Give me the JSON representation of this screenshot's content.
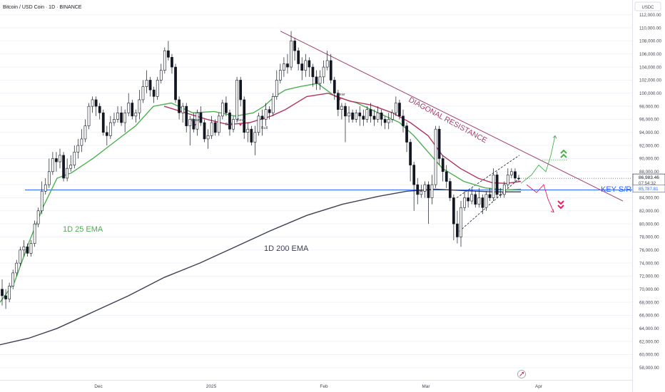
{
  "header": {
    "symbol_title": "Bitcoin / USD Coin · 1D · BINANCE"
  },
  "price_axis": {
    "currency": "USDC",
    "ticks": [
      "112,000.00",
      "110,000.00",
      "108,000.00",
      "106,000.00",
      "104,000.00",
      "102,000.00",
      "100,000.00",
      "98,000.00",
      "96,000.00",
      "94,000.00",
      "92,000.00",
      "90,000.00",
      "88,000.00",
      "86,000.00",
      "84,000.00",
      "82,000.00",
      "80,000.00",
      "78,000.00",
      "76,000.00",
      "74,000.00",
      "72,000.00",
      "70,000.00",
      "68,000.00",
      "66,000.00",
      "64,000.00",
      "62,000.00",
      "60,000.00",
      "58,000.00"
    ],
    "last_price": "86,983.46",
    "countdown": "07:54:32",
    "line_level": "85,787.81"
  },
  "time_axis": {
    "ticks": [
      "Dec",
      "2025",
      "Feb",
      "Mar",
      "Apr"
    ]
  },
  "annotations": {
    "diagonal_resistance": "DIAGONAL RESISTANCE",
    "key_sr": "KEY S/R",
    "ema25_label": "1D 25 EMA",
    "ema200_label": "1D 200 EMA",
    "signals": [
      "Bear",
      "Bull",
      "Bear",
      "Bull",
      "Bear"
    ]
  },
  "colors": {
    "up_candle": "#131722",
    "down_candle": "#131722",
    "ema25": "#4caf50",
    "ema200": "#3d3f52",
    "ema_short": "#b2355e",
    "resistance": "#a1416b",
    "key_sr_line": "#2962ff",
    "bull_arrow": "#4caf50",
    "bear_arrow": "#e91e63"
  },
  "chart_data": {
    "type": "candlestick",
    "price_range": [
      57000,
      113500
    ],
    "key_sr_level": 85200,
    "series": [
      {
        "name": "1D 25 EMA",
        "points": [
          [
            0,
            68000
          ],
          [
            20,
            71000
          ],
          [
            40,
            77000
          ],
          [
            60,
            82500
          ],
          [
            80,
            87000
          ],
          [
            100,
            87800
          ],
          [
            130,
            90000
          ],
          [
            160,
            92500
          ],
          [
            190,
            95000
          ],
          [
            215,
            98000
          ],
          [
            240,
            98500
          ],
          [
            270,
            97000
          ],
          [
            300,
            97200
          ],
          [
            330,
            96500
          ],
          [
            355,
            97000
          ],
          [
            370,
            98000
          ],
          [
            385,
            99500
          ],
          [
            400,
            100500
          ],
          [
            420,
            101000
          ],
          [
            445,
            101500
          ],
          [
            470,
            99500
          ],
          [
            500,
            98500
          ],
          [
            530,
            97000
          ],
          [
            560,
            95500
          ],
          [
            580,
            93500
          ],
          [
            600,
            91000
          ],
          [
            620,
            88500
          ],
          [
            650,
            86500
          ],
          [
            680,
            85500
          ],
          [
            710,
            85200
          ],
          [
            730,
            85300
          ]
        ]
      },
      {
        "name": "1D 200 EMA",
        "points": [
          [
            0,
            61500
          ],
          [
            40,
            62500
          ],
          [
            80,
            64000
          ],
          [
            130,
            66500
          ],
          [
            180,
            69000
          ],
          [
            230,
            71800
          ],
          [
            280,
            74000
          ],
          [
            330,
            76500
          ],
          [
            380,
            79000
          ],
          [
            430,
            81300
          ],
          [
            480,
            83000
          ],
          [
            530,
            84200
          ],
          [
            570,
            85000
          ],
          [
            610,
            85300
          ],
          [
            650,
            85100
          ],
          [
            690,
            84900
          ],
          [
            730,
            84900
          ]
        ]
      },
      {
        "name": "",
        "points": [
          [
            230,
            98000
          ],
          [
            260,
            97000
          ],
          [
            290,
            96000
          ],
          [
            320,
            95200
          ],
          [
            350,
            95500
          ],
          [
            380,
            96500
          ],
          [
            400,
            97500
          ],
          [
            430,
            99500
          ],
          [
            460,
            100000
          ],
          [
            490,
            98800
          ],
          [
            520,
            98200
          ],
          [
            550,
            97000
          ],
          [
            575,
            95500
          ],
          [
            600,
            93500
          ],
          [
            620,
            90500
          ],
          [
            645,
            88500
          ],
          [
            670,
            87000
          ],
          [
            690,
            86300
          ],
          [
            710,
            86200
          ],
          [
            730,
            86500
          ]
        ]
      }
    ],
    "resistance_line": [
      [
        393,
        109500
      ],
      [
        873,
        83500
      ]
    ],
    "channel": {
      "lower": [
        [
          640,
          78500
        ],
        [
          728,
          87000
        ]
      ],
      "upper": [
        [
          640,
          84000
        ],
        [
          728,
          90500
        ]
      ]
    },
    "scenario_up": [
      [
        730,
        86200
      ],
      [
        745,
        87500
      ],
      [
        755,
        89000
      ],
      [
        765,
        88000
      ],
      [
        772,
        90500
      ],
      [
        778,
        93500
      ]
    ],
    "scenario_down": [
      [
        738,
        86000
      ],
      [
        752,
        84800
      ],
      [
        762,
        86000
      ],
      [
        768,
        83800
      ],
      [
        776,
        81800
      ]
    ],
    "candles": [
      [
        70000,
        69000,
        71500,
        67500
      ],
      [
        69000,
        68500,
        70000,
        67000
      ],
      [
        68500,
        70500,
        71000,
        68000
      ],
      [
        70500,
        72500,
        73000,
        70000
      ],
      [
        72500,
        74000,
        74500,
        72000
      ],
      [
        74000,
        76000,
        76500,
        73500
      ],
      [
        76000,
        76500,
        77500,
        75000
      ],
      [
        76500,
        75500,
        77000,
        75000
      ],
      [
        75500,
        77000,
        77500,
        75000
      ],
      [
        77000,
        80000,
        80500,
        76500
      ],
      [
        80000,
        82000,
        82500,
        79500
      ],
      [
        82000,
        85000,
        86500,
        81500
      ],
      [
        85000,
        86000,
        87000,
        84500
      ],
      [
        86000,
        88000,
        90000,
        85500
      ],
      [
        88000,
        90000,
        91000,
        87500
      ],
      [
        90000,
        89500,
        91000,
        88000
      ],
      [
        89500,
        90500,
        91500,
        88500
      ],
      [
        90500,
        87000,
        91000,
        86500
      ],
      [
        87000,
        88500,
        90000,
        86500
      ],
      [
        88500,
        89000,
        90500,
        88000
      ],
      [
        89000,
        91000,
        92000,
        88500
      ],
      [
        91000,
        92000,
        93000,
        90000
      ],
      [
        92000,
        93000,
        94500,
        91000
      ],
      [
        93000,
        95000,
        96000,
        92500
      ],
      [
        95000,
        98000,
        98500,
        94500
      ],
      [
        98000,
        99000,
        99500,
        97000
      ],
      [
        99000,
        98000,
        99500,
        96500
      ],
      [
        98000,
        97000,
        98500,
        96000
      ],
      [
        97000,
        94000,
        97500,
        93500
      ],
      [
        94000,
        93500,
        95000,
        92000
      ],
      [
        93500,
        95500,
        96500,
        93000
      ],
      [
        95500,
        96000,
        97000,
        95000
      ],
      [
        96000,
        97000,
        98000,
        95500
      ],
      [
        97000,
        95500,
        98000,
        95000
      ],
      [
        95500,
        97000,
        97500,
        94000
      ],
      [
        97000,
        98500,
        100000,
        96500
      ],
      [
        98500,
        96500,
        99000,
        96000
      ],
      [
        96500,
        97000,
        97500,
        95500
      ],
      [
        97000,
        99000,
        100500,
        96000
      ],
      [
        99000,
        101000,
        102000,
        98500
      ],
      [
        101000,
        102000,
        103500,
        100000
      ],
      [
        102000,
        100500,
        102500,
        99500
      ],
      [
        100500,
        99500,
        101000,
        98500
      ],
      [
        99500,
        102000,
        102500,
        99000
      ],
      [
        102000,
        103500,
        104500,
        101500
      ],
      [
        103500,
        106500,
        107000,
        103000
      ],
      [
        106500,
        105500,
        108000,
        105000
      ],
      [
        105500,
        104000,
        106000,
        103000
      ],
      [
        104000,
        99000,
        104500,
        98500
      ],
      [
        99000,
        97000,
        99500,
        96000
      ],
      [
        97000,
        98000,
        98500,
        95500
      ],
      [
        98000,
        95000,
        98500,
        94000
      ],
      [
        95000,
        96000,
        96500,
        92000
      ],
      [
        96000,
        94500,
        97000,
        94000
      ],
      [
        94500,
        97000,
        97500,
        93500
      ],
      [
        97000,
        95500,
        98000,
        95000
      ],
      [
        95500,
        93000,
        96000,
        92500
      ],
      [
        93000,
        93500,
        94500,
        91500
      ],
      [
        93500,
        95500,
        96500,
        93000
      ],
      [
        95500,
        94000,
        96000,
        93500
      ],
      [
        94000,
        96500,
        97000,
        93500
      ],
      [
        96500,
        98500,
        99000,
        96000
      ],
      [
        98500,
        97000,
        99500,
        96500
      ],
      [
        97000,
        94500,
        97500,
        93500
      ],
      [
        94500,
        96000,
        96500,
        94000
      ],
      [
        96000,
        102000,
        102500,
        95500
      ],
      [
        102000,
        99000,
        102500,
        98000
      ],
      [
        99000,
        94000,
        99500,
        93000
      ],
      [
        94000,
        94500,
        95500,
        92500
      ],
      [
        94500,
        92500,
        95000,
        92000
      ],
      [
        92500,
        94000,
        95000,
        90500
      ],
      [
        94000,
        96500,
        97000,
        93500
      ],
      [
        96500,
        96000,
        97500,
        93500
      ],
      [
        96000,
        97500,
        98500,
        95000
      ],
      [
        97500,
        97000,
        98000,
        96000
      ],
      [
        97000,
        99500,
        100000,
        96500
      ],
      [
        99500,
        102000,
        103500,
        99000
      ],
      [
        102000,
        103500,
        104500,
        101500
      ],
      [
        103500,
        104500,
        105500,
        102500
      ],
      [
        104500,
        104000,
        106000,
        103000
      ],
      [
        104000,
        108000,
        109500,
        103500
      ],
      [
        108000,
        106500,
        108500,
        105000
      ],
      [
        106500,
        104500,
        107000,
        103500
      ],
      [
        104500,
        103500,
        105500,
        102000
      ],
      [
        103500,
        105000,
        106000,
        102500
      ],
      [
        105000,
        104000,
        105500,
        102500
      ],
      [
        104000,
        102500,
        104500,
        101000
      ],
      [
        102500,
        101500,
        103500,
        100500
      ],
      [
        101500,
        102500,
        103500,
        100500
      ],
      [
        102500,
        104000,
        105000,
        101500
      ],
      [
        104000,
        105000,
        106500,
        103500
      ],
      [
        105000,
        102000,
        106000,
        101500
      ],
      [
        102000,
        100000,
        102500,
        99000
      ],
      [
        100000,
        97500,
        100500,
        96500
      ],
      [
        97500,
        98000,
        98500,
        96000
      ],
      [
        98000,
        96500,
        98500,
        92500
      ],
      [
        96500,
        97000,
        98000,
        95500
      ],
      [
        97000,
        96000,
        97500,
        95500
      ],
      [
        96000,
        97000,
        97500,
        95500
      ],
      [
        97000,
        96500,
        98000,
        95000
      ],
      [
        96500,
        96000,
        97500,
        95000
      ],
      [
        96000,
        97500,
        98000,
        95500
      ],
      [
        97500,
        96500,
        98500,
        95500
      ],
      [
        96500,
        96000,
        97500,
        95000
      ],
      [
        96000,
        97000,
        98000,
        95500
      ],
      [
        97000,
        96000,
        97500,
        95000
      ],
      [
        96000,
        95500,
        96500,
        94500
      ],
      [
        95500,
        96000,
        97000,
        94500
      ],
      [
        96000,
        97000,
        97500,
        95500
      ],
      [
        97000,
        98500,
        99500,
        96500
      ],
      [
        98500,
        96500,
        99000,
        96000
      ],
      [
        96500,
        95000,
        97500,
        94000
      ],
      [
        95000,
        92500,
        95500,
        91000
      ],
      [
        92500,
        89000,
        93000,
        86500
      ],
      [
        89000,
        86000,
        89500,
        82000
      ],
      [
        86000,
        84500,
        87000,
        83000
      ],
      [
        84500,
        85000,
        86000,
        84000
      ],
      [
        85000,
        86000,
        86500,
        84000
      ],
      [
        86000,
        84000,
        86500,
        80000
      ],
      [
        84000,
        86000,
        87500,
        83000
      ],
      [
        86000,
        94500,
        95000,
        85500
      ],
      [
        94500,
        90000,
        95000,
        89000
      ],
      [
        90000,
        88000,
        90500,
        86500
      ],
      [
        88000,
        86500,
        89000,
        85500
      ],
      [
        86500,
        84000,
        87000,
        83500
      ],
      [
        84000,
        80000,
        84500,
        77500
      ],
      [
        80000,
        78000,
        82000,
        77000
      ],
      [
        78000,
        82500,
        83500,
        76500
      ],
      [
        82500,
        84000,
        85000,
        82000
      ],
      [
        84000,
        83500,
        85000,
        82500
      ],
      [
        83500,
        84500,
        85500,
        83000
      ],
      [
        84500,
        83000,
        85000,
        82500
      ],
      [
        83000,
        84000,
        85500,
        82500
      ],
      [
        84000,
        82500,
        84500,
        81500
      ],
      [
        82500,
        84500,
        85000,
        82000
      ],
      [
        84500,
        84000,
        85500,
        83500
      ],
      [
        84000,
        87500,
        88500,
        83500
      ],
      [
        87500,
        84500,
        88000,
        84000
      ],
      [
        84500,
        84500,
        85500,
        84000
      ],
      [
        84500,
        86000,
        86500,
        84000
      ],
      [
        86000,
        87500,
        88500,
        85500
      ],
      [
        87500,
        88000,
        88500,
        87000
      ],
      [
        88000,
        87000,
        88500,
        86500
      ],
      [
        87000,
        86983,
        87500,
        86500
      ]
    ]
  }
}
